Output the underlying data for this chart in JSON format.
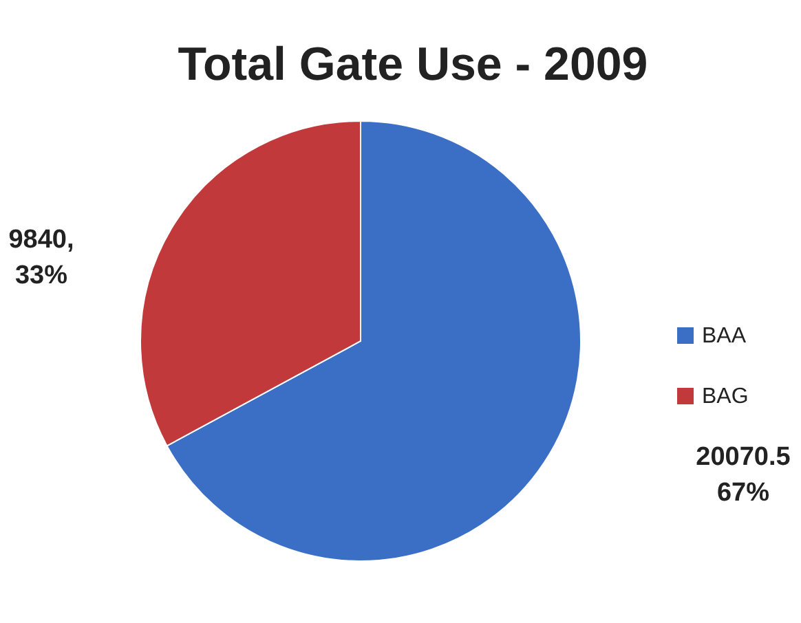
{
  "chart_data": {
    "type": "pie",
    "title": "Total Gate Use - 2009",
    "categories": [
      "BAA",
      "BAG"
    ],
    "values": [
      20070.5,
      9840
    ],
    "colors": [
      "#3b6fc6",
      "#c2393c"
    ],
    "value_labels": [
      "20070.5\n67%",
      "9840,\n33%"
    ],
    "legend": "right"
  }
}
